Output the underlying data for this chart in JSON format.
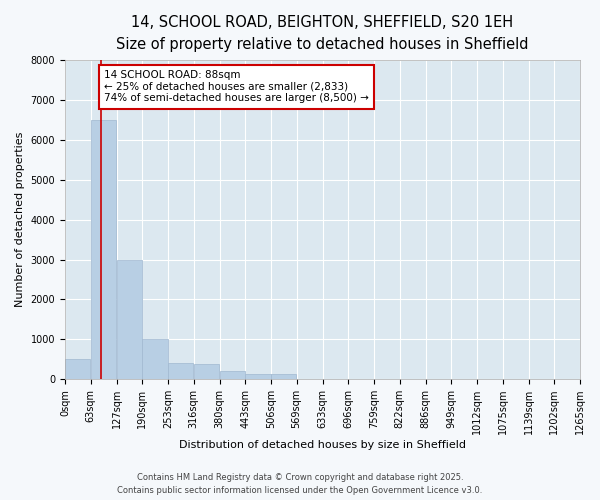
{
  "title_line1": "14, SCHOOL ROAD, BEIGHTON, SHEFFIELD, S20 1EH",
  "title_line2": "Size of property relative to detached houses in Sheffield",
  "xlabel": "Distribution of detached houses by size in Sheffield",
  "ylabel": "Number of detached properties",
  "bar_color": "#b8cfe4",
  "bar_edge_color": "#a0b8d0",
  "plot_bg_color": "#dce8f0",
  "fig_bg_color": "#f5f8fb",
  "bin_edges": [
    0,
    63,
    127,
    190,
    253,
    316,
    380,
    443,
    506,
    569,
    633,
    696,
    759,
    822,
    886,
    949,
    1012,
    1075,
    1139,
    1202,
    1265
  ],
  "bin_labels": [
    "0sqm",
    "63sqm",
    "127sqm",
    "190sqm",
    "253sqm",
    "316sqm",
    "380sqm",
    "443sqm",
    "506sqm",
    "569sqm",
    "633sqm",
    "696sqm",
    "759sqm",
    "822sqm",
    "886sqm",
    "949sqm",
    "1012sqm",
    "1075sqm",
    "1139sqm",
    "1202sqm",
    "1265sqm"
  ],
  "bar_heights": [
    500,
    6500,
    3000,
    1000,
    400,
    380,
    200,
    120,
    120,
    0,
    0,
    0,
    0,
    0,
    0,
    0,
    0,
    0,
    0,
    0
  ],
  "property_size": 88,
  "ylim": [
    0,
    8000
  ],
  "yticks": [
    0,
    1000,
    2000,
    3000,
    4000,
    5000,
    6000,
    7000,
    8000
  ],
  "annotation_text": "14 SCHOOL ROAD: 88sqm\n← 25% of detached houses are smaller (2,833)\n74% of semi-detached houses are larger (8,500) →",
  "annotation_box_color": "#cc0000",
  "red_line_color": "#cc0000",
  "footer_line1": "Contains HM Land Registry data © Crown copyright and database right 2025.",
  "footer_line2": "Contains public sector information licensed under the Open Government Licence v3.0.",
  "grid_color": "#ffffff",
  "title_fontsize": 10.5,
  "subtitle_fontsize": 9.5,
  "axis_label_fontsize": 8,
  "tick_fontsize": 7,
  "annotation_fontsize": 7.5
}
